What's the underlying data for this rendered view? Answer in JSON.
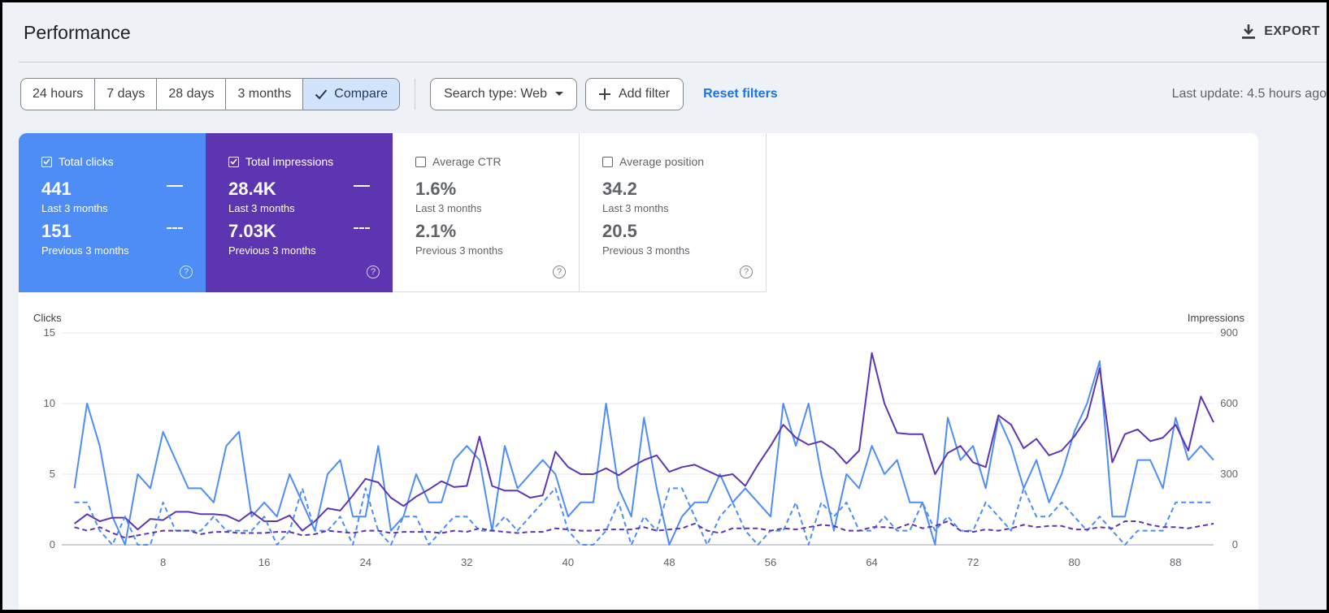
{
  "header": {
    "title": "Performance",
    "export_label": "EXPORT"
  },
  "filters": {
    "ranges": [
      "24 hours",
      "7 days",
      "28 days",
      "3 months"
    ],
    "compare_label": "Compare",
    "search_type": "Search type: Web",
    "add_filter": "Add filter",
    "reset": "Reset filters",
    "last_update": "Last update: 4.5 hours ago"
  },
  "metrics": [
    {
      "label": "Total clicks",
      "checked": true,
      "current": "441",
      "current_period": "Last 3 months",
      "previous": "151",
      "previous_period": "Previous 3 months"
    },
    {
      "label": "Total impressions",
      "checked": true,
      "current": "28.4K",
      "current_period": "Last 3 months",
      "previous": "7.03K",
      "previous_period": "Previous 3 months"
    },
    {
      "label": "Average CTR",
      "checked": false,
      "current": "1.6%",
      "current_period": "Last 3 months",
      "previous": "2.1%",
      "previous_period": "Previous 3 months"
    },
    {
      "label": "Average position",
      "checked": false,
      "current": "34.2",
      "current_period": "Last 3 months",
      "previous": "20.5",
      "previous_period": "Previous 3 months"
    }
  ],
  "colors": {
    "clicks": "#4e8df5",
    "impressions": "#5e35b1"
  },
  "chart_data": {
    "type": "line",
    "ylabel": "Clicks",
    "y2label": "Impressions",
    "ylim": [
      0,
      15
    ],
    "y2lim": [
      0,
      900
    ],
    "yticks": [
      0,
      5,
      10,
      15
    ],
    "y2ticks": [
      0,
      300,
      600,
      900
    ],
    "xlim": [
      0,
      91
    ],
    "xticks": [
      8,
      16,
      24,
      32,
      40,
      48,
      56,
      64,
      72,
      80,
      88
    ],
    "grid": true,
    "legend": "none",
    "series": [
      {
        "axis": "left",
        "style": "solid",
        "color": "#4e8df5",
        "values": [
          4,
          10,
          7,
          2,
          0,
          5,
          4,
          8,
          6,
          4,
          4,
          3,
          7,
          8,
          2,
          3,
          2,
          5,
          3,
          1,
          5,
          6,
          2,
          2,
          7,
          1,
          2,
          5,
          3,
          3,
          6,
          7,
          6,
          1,
          7,
          4,
          5,
          6,
          5,
          2,
          3,
          3,
          10,
          4,
          2,
          9,
          4,
          0,
          2,
          3,
          3,
          5,
          3,
          4,
          3,
          2,
          10,
          7,
          10,
          5,
          1,
          5,
          4,
          7,
          5,
          6,
          3,
          3,
          0,
          9,
          6,
          7,
          4,
          9,
          7,
          4,
          6,
          3,
          5,
          8,
          10,
          13,
          2,
          2,
          6,
          6,
          4,
          9,
          6,
          7,
          6
        ]
      },
      {
        "axis": "right",
        "style": "solid",
        "color": "#5e35b1",
        "values": [
          90,
          130,
          100,
          115,
          115,
          65,
          110,
          105,
          140,
          140,
          130,
          130,
          125,
          100,
          140,
          100,
          100,
          125,
          60,
          100,
          155,
          145,
          210,
          280,
          265,
          200,
          165,
          205,
          235,
          270,
          245,
          250,
          460,
          250,
          230,
          230,
          200,
          210,
          395,
          330,
          300,
          300,
          325,
          295,
          330,
          360,
          380,
          310,
          330,
          340,
          315,
          290,
          300,
          250,
          340,
          420,
          510,
          455,
          425,
          440,
          405,
          345,
          400,
          815,
          600,
          475,
          470,
          470,
          300,
          390,
          420,
          350,
          330,
          550,
          510,
          410,
          450,
          380,
          400,
          460,
          540,
          750,
          350,
          470,
          490,
          440,
          455,
          510,
          400,
          630,
          520
        ]
      },
      {
        "axis": "left",
        "style": "dashed",
        "color": "#4e8df5",
        "values": [
          3,
          3,
          1,
          0,
          2,
          0,
          0,
          3,
          1,
          1,
          1,
          2,
          1,
          1,
          1,
          2,
          0,
          1,
          4,
          1,
          1,
          2,
          0,
          4,
          1,
          0,
          2,
          2,
          0,
          1,
          2,
          2,
          1,
          1,
          2,
          1,
          2,
          3,
          4,
          1,
          0,
          0,
          1,
          3,
          0,
          2,
          1,
          4,
          4,
          2,
          0,
          2,
          3,
          1,
          0,
          1,
          1,
          3,
          0,
          3,
          2,
          3,
          1,
          1,
          2,
          1,
          1,
          3,
          1,
          2,
          1,
          1,
          3,
          2,
          1,
          4,
          2,
          2,
          3,
          2,
          1,
          2,
          1,
          0,
          1,
          1,
          1,
          3,
          3,
          3,
          3
        ]
      },
      {
        "axis": "right",
        "style": "dashed",
        "color": "#5e35b1",
        "values": [
          75,
          60,
          75,
          50,
          30,
          40,
          50,
          60,
          60,
          60,
          45,
          55,
          55,
          50,
          50,
          50,
          55,
          55,
          40,
          45,
          60,
          55,
          50,
          60,
          60,
          50,
          55,
          55,
          55,
          50,
          60,
          55,
          70,
          60,
          55,
          50,
          55,
          55,
          70,
          65,
          60,
          60,
          65,
          65,
          65,
          75,
          60,
          65,
          70,
          90,
          60,
          50,
          70,
          70,
          70,
          60,
          70,
          65,
          75,
          85,
          80,
          60,
          60,
          75,
          75,
          70,
          90,
          70,
          80,
          100,
          60,
          55,
          65,
          60,
          70,
          85,
          75,
          80,
          80,
          65,
          65,
          75,
          70,
          100,
          100,
          85,
          75,
          75,
          70,
          80,
          90
        ]
      }
    ]
  }
}
